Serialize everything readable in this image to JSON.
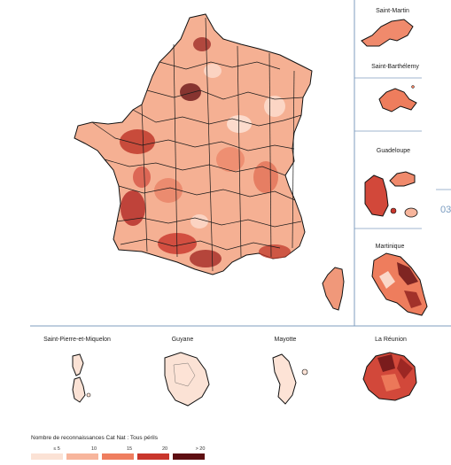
{
  "territories": {
    "saint_martin": "Saint-Martin",
    "saint_barthelemy": "Saint-Barthélemy",
    "guadeloupe": "Guadeloupe",
    "martinique": "Martinique",
    "saint_pierre": "Saint-Pierre-et-Miquelon",
    "guyane": "Guyane",
    "mayotte": "Mayotte",
    "reunion": "La Réunion"
  },
  "edge_fragment": "03",
  "legend": {
    "title": "Nombre de reconnaissances Cat Nat : Tous périls",
    "classes": [
      {
        "label": "≤ 5",
        "color": "#fbe2d5"
      },
      {
        "label": "10",
        "color": "#f7b59c"
      },
      {
        "label": "15",
        "color": "#ef7e5f"
      },
      {
        "label": "20",
        "color": "#c9362c"
      },
      {
        "label": "> 20",
        "color": "#5e0f12"
      }
    ]
  },
  "colors": {
    "base": "#f6b59c",
    "light": "#fde3d6",
    "mid": "#ee7d5d",
    "dark": "#b5302a",
    "darkest": "#5e0f12",
    "divider": "#7f9cbf"
  }
}
